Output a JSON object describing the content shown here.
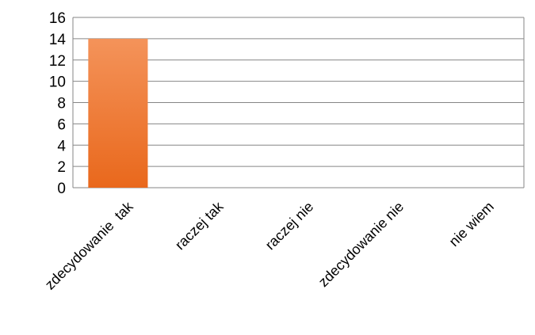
{
  "chart_data": {
    "type": "bar",
    "categories": [
      "zdecydowanie  tak",
      "raczej tak",
      "raczej nie",
      "zdecydowanie nie",
      "nie wiem"
    ],
    "values": [
      14,
      0,
      0,
      0,
      0
    ],
    "title": "",
    "xlabel": "",
    "ylabel": "",
    "ylim": [
      0,
      16
    ],
    "yticks": [
      0,
      2,
      4,
      6,
      8,
      10,
      12,
      14,
      16
    ],
    "grid": true,
    "legend": "none",
    "bar_color_top": "#f4935a",
    "bar_color_bottom": "#e9681c",
    "grid_color": "#868686"
  }
}
